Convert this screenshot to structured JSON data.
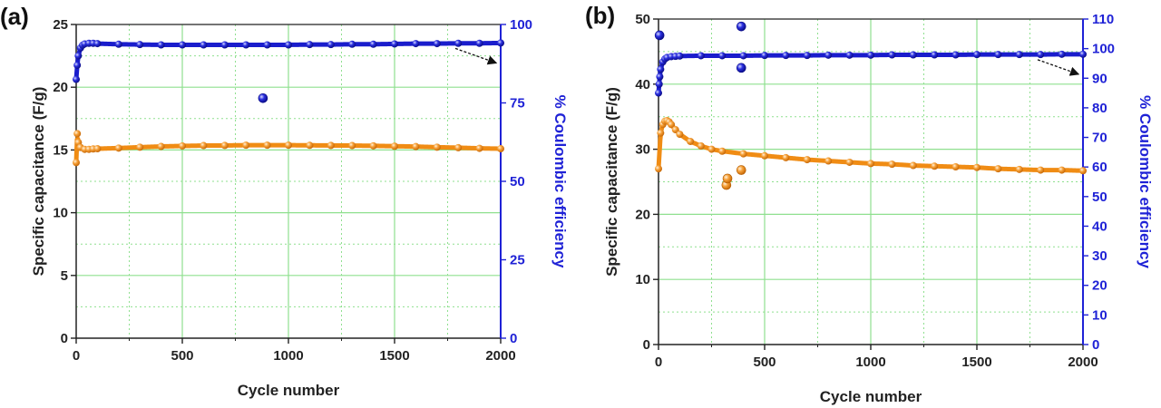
{
  "chart_data": [
    {
      "type": "scatter",
      "panel_label": "(a)",
      "xlabel": "Cycle number",
      "ylabel": "Specific capacitance (F/g)",
      "y2label": "% Coulombic efficiency",
      "xlim": [
        0,
        2000
      ],
      "ylim": [
        0,
        25
      ],
      "y2lim": [
        0,
        100
      ],
      "xticks": [
        0,
        500,
        1000,
        1500,
        2000
      ],
      "yticks": [
        0,
        5,
        10,
        15,
        20,
        25
      ],
      "y2ticks": [
        0,
        25,
        50,
        75,
        100
      ],
      "grid": true,
      "colors": {
        "capacitance": "#f5941e",
        "efficiency": "#1f22d6",
        "grid": "#8fe08f",
        "right_axis": "#1f22d6"
      },
      "series": [
        {
          "name": "Specific capacitance",
          "axis": "left",
          "x": [
            0,
            5,
            10,
            20,
            40,
            60,
            80,
            100,
            200,
            300,
            400,
            500,
            600,
            700,
            800,
            900,
            1000,
            1100,
            1200,
            1300,
            1400,
            1500,
            1600,
            1700,
            1800,
            1900,
            2000
          ],
          "values": [
            14.0,
            16.3,
            15.6,
            15.2,
            15.05,
            15.05,
            15.08,
            15.1,
            15.15,
            15.22,
            15.28,
            15.32,
            15.35,
            15.36,
            15.38,
            15.38,
            15.38,
            15.37,
            15.36,
            15.35,
            15.33,
            15.3,
            15.27,
            15.22,
            15.18,
            15.13,
            15.1
          ],
          "outliers": []
        },
        {
          "name": "% Coulombic efficiency",
          "axis": "right",
          "x": [
            0,
            5,
            10,
            20,
            30,
            40,
            60,
            80,
            100,
            200,
            300,
            400,
            500,
            600,
            700,
            800,
            900,
            1000,
            1100,
            1200,
            1300,
            1400,
            1500,
            1600,
            1700,
            1800,
            1900,
            2000
          ],
          "values": [
            82.5,
            87,
            90,
            92.5,
            93.4,
            93.8,
            94.0,
            94.0,
            93.9,
            93.7,
            93.6,
            93.5,
            93.5,
            93.5,
            93.5,
            93.5,
            93.5,
            93.5,
            93.6,
            93.6,
            93.7,
            93.7,
            93.8,
            93.9,
            93.9,
            94.0,
            94.0,
            94.1
          ],
          "outliers": [
            {
              "x": 880,
              "y": 76.5
            }
          ]
        }
      ],
      "annotations": [
        "arrow from efficiency curve end to right axis"
      ]
    },
    {
      "type": "scatter",
      "panel_label": "(b)",
      "xlabel": "Cycle number",
      "ylabel": "Specific capacitance (F/g)",
      "y2label": "% Coulombic efficiency",
      "xlim": [
        0,
        2000
      ],
      "ylim": [
        0,
        50
      ],
      "y2lim": [
        0,
        110
      ],
      "xticks": [
        0,
        500,
        1000,
        1500,
        2000
      ],
      "yticks": [
        0,
        10,
        20,
        30,
        40,
        50
      ],
      "y2ticks": [
        0,
        10,
        20,
        30,
        40,
        50,
        60,
        70,
        80,
        90,
        100,
        110
      ],
      "grid": true,
      "colors": {
        "capacitance": "#f5941e",
        "efficiency": "#1f22d6",
        "grid": "#8fe08f",
        "right_axis": "#1f22d6"
      },
      "series": [
        {
          "name": "Specific capacitance",
          "axis": "left",
          "x": [
            0,
            10,
            20,
            30,
            40,
            50,
            60,
            80,
            100,
            150,
            200,
            250,
            300,
            400,
            500,
            600,
            700,
            800,
            900,
            1000,
            1100,
            1200,
            1300,
            1400,
            1500,
            1600,
            1700,
            1800,
            1900,
            2000
          ],
          "values": [
            27.0,
            32.5,
            33.8,
            34.3,
            34.4,
            34.2,
            33.8,
            33.0,
            32.3,
            31.2,
            30.5,
            30.0,
            29.7,
            29.3,
            29.0,
            28.7,
            28.4,
            28.2,
            28.0,
            27.8,
            27.7,
            27.5,
            27.4,
            27.3,
            27.2,
            27.0,
            26.9,
            26.8,
            26.8,
            26.7
          ],
          "outliers": [
            {
              "x": 320,
              "y": 24.5
            },
            {
              "x": 325,
              "y": 25.5
            },
            {
              "x": 390,
              "y": 26.8
            }
          ]
        },
        {
          "name": "% Coulombic efficiency",
          "axis": "right",
          "x": [
            0,
            3,
            6,
            10,
            20,
            30,
            40,
            60,
            80,
            100,
            200,
            300,
            400,
            500,
            600,
            700,
            800,
            900,
            1000,
            1100,
            1200,
            1300,
            1400,
            1500,
            1600,
            1700,
            1800,
            1900,
            2000
          ],
          "values": [
            85,
            88,
            90.5,
            93,
            95.5,
            96.5,
            97.0,
            97.3,
            97.4,
            97.5,
            97.6,
            97.6,
            97.6,
            97.7,
            97.7,
            97.7,
            97.8,
            97.8,
            97.8,
            97.9,
            97.9,
            97.9,
            97.9,
            98.0,
            98.0,
            98.0,
            98.0,
            98.1,
            98.1
          ],
          "outliers": [
            {
              "x": 5,
              "y": 104.5
            },
            {
              "x": 390,
              "y": 107.5
            },
            {
              "x": 390,
              "y": 93.5
            }
          ]
        }
      ],
      "annotations": [
        "arrow from efficiency curve end to right axis"
      ]
    }
  ]
}
